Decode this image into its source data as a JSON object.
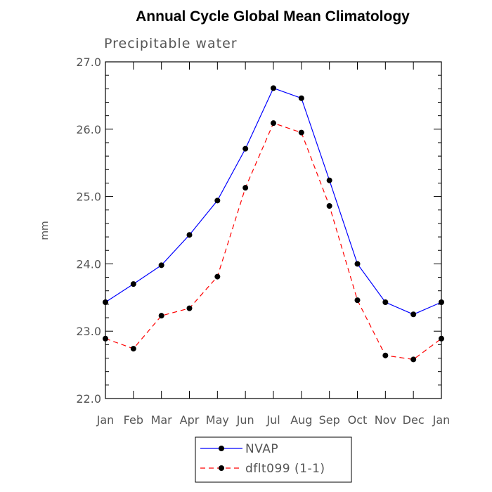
{
  "chart_data": {
    "type": "line",
    "title": "Annual Cycle Global Mean Climatology",
    "subtitle": "Precipitable water",
    "ylabel": "mm",
    "xlabel": "",
    "ylim": [
      22.0,
      27.0
    ],
    "y_ticks": [
      "22.0",
      "23.0",
      "24.0",
      "25.0",
      "26.0",
      "27.0"
    ],
    "categories": [
      "Jan",
      "Feb",
      "Mar",
      "Apr",
      "May",
      "Jun",
      "Jul",
      "Aug",
      "Sep",
      "Oct",
      "Nov",
      "Dec",
      "Jan"
    ],
    "grid": false,
    "legend_position": "bottom",
    "series": [
      {
        "name": "NVAP",
        "color": "#0000ff",
        "dash": "solid",
        "values": [
          23.43,
          23.7,
          23.98,
          24.43,
          24.94,
          25.71,
          26.61,
          26.46,
          25.24,
          24.0,
          23.43,
          23.25,
          23.43
        ]
      },
      {
        "name": "dflt099 (1-1)",
        "color": "#ff0000",
        "dash": "dashed",
        "values": [
          22.89,
          22.74,
          23.23,
          23.34,
          23.81,
          25.13,
          26.09,
          25.95,
          24.86,
          23.46,
          22.64,
          22.58,
          22.89
        ]
      }
    ]
  }
}
